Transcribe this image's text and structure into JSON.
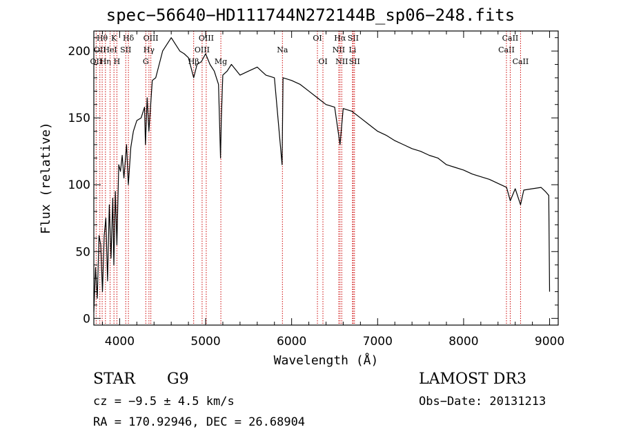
{
  "title": "spec−56640−HD111744N272144B_sp06−248.fits",
  "info": {
    "object_class": "STAR",
    "subclass": "G9",
    "survey": "LAMOST DR3",
    "cz": "cz = −9.5 ± 4.5 km/s",
    "obs_date": "Obs−Date: 20131213",
    "radec": "RA = 170.92946, DEC =  26.68904"
  },
  "chart_data": {
    "type": "line",
    "xlabel": "Wavelength (Å)",
    "ylabel": "Flux (relative)",
    "xlim": [
      3700,
      9100
    ],
    "ylim": [
      -5,
      215
    ],
    "x_ticks": [
      4000,
      5000,
      6000,
      7000,
      8000,
      9000
    ],
    "y_ticks": [
      0,
      50,
      100,
      150,
      200
    ],
    "grid": false,
    "line_color": "#000000",
    "marker_color": "#cc0000",
    "series": [
      {
        "x": [
          3700,
          3720,
          3740,
          3760,
          3780,
          3800,
          3820,
          3840,
          3860,
          3880,
          3900,
          3920,
          3933,
          3950,
          3968,
          3990,
          4010,
          4030,
          4050,
          4080,
          4101,
          4130,
          4160,
          4200,
          4250,
          4290,
          4300,
          4320,
          4340,
          4380,
          4420,
          4460,
          4500,
          4550,
          4600,
          4650,
          4700,
          4750,
          4800,
          4861,
          4900,
          4950,
          5000,
          5050,
          5100,
          5150,
          5173,
          5183,
          5200,
          5250,
          5300,
          5400,
          5500,
          5600,
          5700,
          5800,
          5889,
          5900,
          6000,
          6100,
          6200,
          6300,
          6400,
          6500,
          6563,
          6600,
          6700,
          6800,
          6900,
          7000,
          7100,
          7200,
          7300,
          7400,
          7500,
          7600,
          7700,
          7800,
          7900,
          8000,
          8100,
          8200,
          8300,
          8400,
          8500,
          8542,
          8600,
          8662,
          8700,
          8800,
          8900,
          8950,
          8990,
          9000
        ],
        "y": [
          5,
          38,
          15,
          62,
          55,
          20,
          62,
          75,
          28,
          85,
          45,
          90,
          40,
          95,
          55,
          115,
          110,
          122,
          105,
          130,
          100,
          128,
          140,
          148,
          150,
          158,
          130,
          165,
          140,
          178,
          180,
          190,
          200,
          205,
          210,
          205,
          200,
          198,
          195,
          180,
          190,
          192,
          198,
          190,
          185,
          175,
          120,
          150,
          182,
          185,
          190,
          182,
          185,
          188,
          182,
          180,
          115,
          180,
          178,
          175,
          170,
          165,
          160,
          158,
          130,
          157,
          155,
          150,
          145,
          140,
          137,
          133,
          130,
          127,
          125,
          122,
          120,
          115,
          113,
          111,
          108,
          106,
          104,
          101,
          98,
          88,
          97,
          85,
          96,
          97,
          98,
          95,
          92,
          20
        ]
      }
    ],
    "lines": [
      {
        "x": 3727,
        "label": "OII",
        "row": 3
      },
      {
        "x": 3770,
        "label": "OII",
        "row": 2
      },
      {
        "x": 3797,
        "label": "Hθ",
        "row": 1
      },
      {
        "x": 3835,
        "label": "Hη",
        "row": 3
      },
      {
        "x": 3889,
        "label": "HeI",
        "row": 2
      },
      {
        "x": 3934,
        "label": "K",
        "row": 1
      },
      {
        "x": 3968,
        "label": "H",
        "row": 3
      },
      {
        "x": 4071,
        "label": "SII",
        "row": 2
      },
      {
        "x": 4102,
        "label": "Hδ",
        "row": 1
      },
      {
        "x": 4304,
        "label": "G",
        "row": 3
      },
      {
        "x": 4341,
        "label": "Hγ",
        "row": 2
      },
      {
        "x": 4363,
        "label": "OIII",
        "row": 1
      },
      {
        "x": 4861,
        "label": "Hβ",
        "row": 3
      },
      {
        "x": 4959,
        "label": "OIII",
        "row": 2
      },
      {
        "x": 5007,
        "label": "OIII",
        "row": 1
      },
      {
        "x": 5177,
        "label": "Mg",
        "row": 3
      },
      {
        "x": 5893,
        "label": "Na",
        "row": 2
      },
      {
        "x": 6300,
        "label": "OI",
        "row": 1
      },
      {
        "x": 6364,
        "label": "OI",
        "row": 3
      },
      {
        "x": 6548,
        "label": "NII",
        "row": 2
      },
      {
        "x": 6563,
        "label": "Hα",
        "row": 1
      },
      {
        "x": 6583,
        "label": "NII",
        "row": 3
      },
      {
        "x": 6708,
        "label": "Li",
        "row": 2
      },
      {
        "x": 6716,
        "label": "SII",
        "row": 1
      },
      {
        "x": 6731,
        "label": "SII",
        "row": 3
      },
      {
        "x": 8498,
        "label": "CaII",
        "row": 2
      },
      {
        "x": 8542,
        "label": "CaII",
        "row": 1
      },
      {
        "x": 8662,
        "label": "CaII",
        "row": 3
      }
    ]
  }
}
